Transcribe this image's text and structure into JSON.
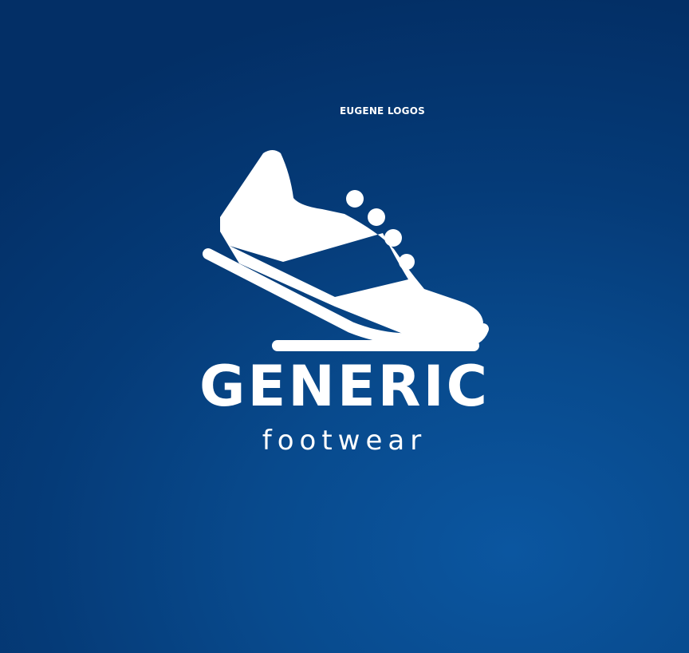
{
  "credit": "EUGENE LOGOS",
  "logo": {
    "icon": "running-shoe-icon",
    "brand": "GENERIC",
    "tagline": "footwear"
  },
  "colors": {
    "background_dark": "#032f66",
    "background_light": "#0b56a0",
    "foreground": "#ffffff"
  }
}
